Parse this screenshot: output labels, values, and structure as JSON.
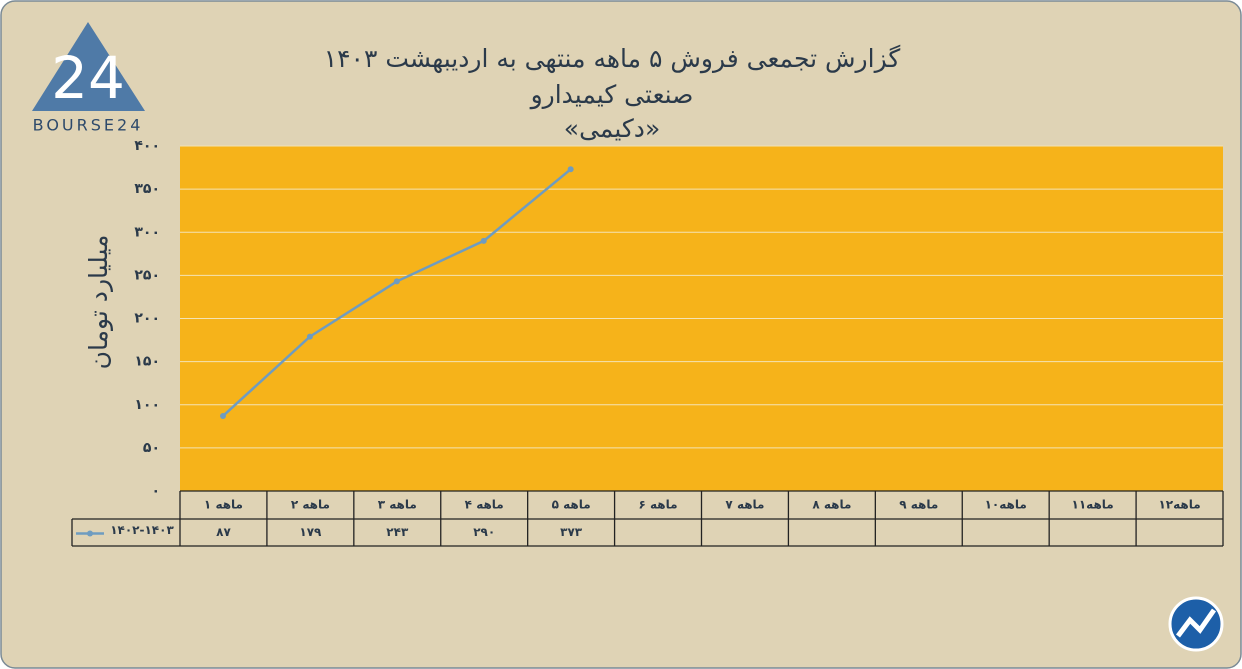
{
  "logo": {
    "digits": "24",
    "text": "BOURSE24"
  },
  "chart_data": {
    "type": "line",
    "title": "گزارش تجمعی فروش ۵ ماهه منتهی به اردیبهشت ۱۴۰۳",
    "subtitle": "صنعتی کیمیدارو",
    "subtitle2": "«دکیمی»",
    "y_label": "میلیارد تومان",
    "categories": [
      "۱ ماهه",
      "۲ ماهه",
      "۳ ماهه",
      "۴ ماهه",
      "۵ ماهه",
      "۶ ماهه",
      "۷ ماهه",
      "۸ ماهه",
      "۹ ماهه",
      "۱۰ماهه",
      "۱۱ماهه",
      "۱۲ماهه"
    ],
    "series": [
      {
        "name": "۱۴۰۲-۱۴۰۳",
        "color": "#6f9cc0",
        "values": [
          87,
          179,
          243,
          290,
          373,
          null,
          null,
          null,
          null,
          null,
          null,
          null
        ],
        "value_labels": [
          "۸۷",
          "۱۷۹",
          "۲۴۳",
          "۲۹۰",
          "۳۷۳",
          null,
          null,
          null,
          null,
          null,
          null,
          null
        ]
      }
    ],
    "ylim": [
      0,
      400
    ],
    "yticks": [
      {
        "value": 0,
        "label": "۰"
      },
      {
        "value": 50,
        "label": "۵۰"
      },
      {
        "value": 100,
        "label": "۱۰۰"
      },
      {
        "value": 150,
        "label": "۱۵۰"
      },
      {
        "value": 200,
        "label": "۲۰۰"
      },
      {
        "value": 250,
        "label": "۲۵۰"
      },
      {
        "value": 300,
        "label": "۳۰۰"
      },
      {
        "value": 350,
        "label": "۳۵۰"
      },
      {
        "value": 400,
        "label": "۴۰۰"
      }
    ],
    "grid": true,
    "plot_color": "#f6b31a",
    "data_table": true
  }
}
